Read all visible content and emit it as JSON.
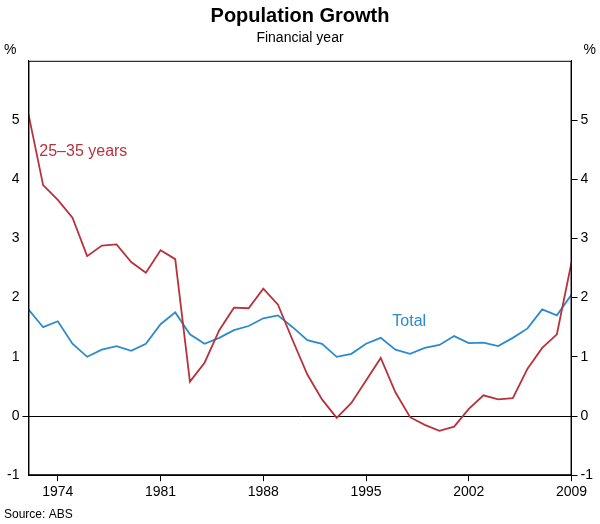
{
  "chart_data": {
    "type": "line",
    "title": "Population Growth",
    "subtitle": "Financial year",
    "ylabel": "%",
    "y2label": "%",
    "source": "Source: ABS",
    "x": [
      1972,
      1973,
      1974,
      1975,
      1976,
      1977,
      1978,
      1979,
      1980,
      1981,
      1982,
      1983,
      1984,
      1985,
      1986,
      1987,
      1988,
      1989,
      1990,
      1991,
      1992,
      1993,
      1994,
      1995,
      1996,
      1997,
      1998,
      1999,
      2000,
      2001,
      2002,
      2003,
      2004,
      2005,
      2006,
      2007,
      2008,
      2009
    ],
    "xlim": [
      1972,
      2009
    ],
    "xticks": [
      1974,
      1981,
      1988,
      1995,
      2002,
      2009
    ],
    "ylim": [
      -1,
      6
    ],
    "yticks": [
      -1,
      0,
      1,
      2,
      3,
      4,
      5
    ],
    "y2lim": [
      -1,
      6
    ],
    "y2ticks": [
      -1,
      0,
      1,
      2,
      3,
      4,
      5
    ],
    "grid": false,
    "series": [
      {
        "name": "25–35 years",
        "color": "#b8323c",
        "values": [
          5.1,
          3.9,
          3.65,
          3.35,
          2.7,
          2.88,
          2.9,
          2.6,
          2.42,
          2.8,
          2.65,
          0.58,
          0.9,
          1.45,
          1.83,
          1.82,
          2.15,
          1.88,
          1.28,
          0.7,
          0.28,
          -0.03,
          0.22,
          0.6,
          0.98,
          0.4,
          -0.02,
          -0.15,
          -0.25,
          -0.18,
          0.12,
          0.35,
          0.28,
          0.3,
          0.8,
          1.15,
          1.38,
          2.6
        ]
      },
      {
        "name": "Total",
        "color": "#2b8ccc",
        "values": [
          1.8,
          1.5,
          1.6,
          1.22,
          1.0,
          1.12,
          1.18,
          1.1,
          1.22,
          1.55,
          1.75,
          1.38,
          1.22,
          1.32,
          1.45,
          1.52,
          1.65,
          1.7,
          1.5,
          1.28,
          1.22,
          1.0,
          1.05,
          1.22,
          1.32,
          1.12,
          1.05,
          1.15,
          1.2,
          1.35,
          1.23,
          1.24,
          1.18,
          1.32,
          1.48,
          1.8,
          1.7,
          2.05
        ]
      }
    ]
  }
}
